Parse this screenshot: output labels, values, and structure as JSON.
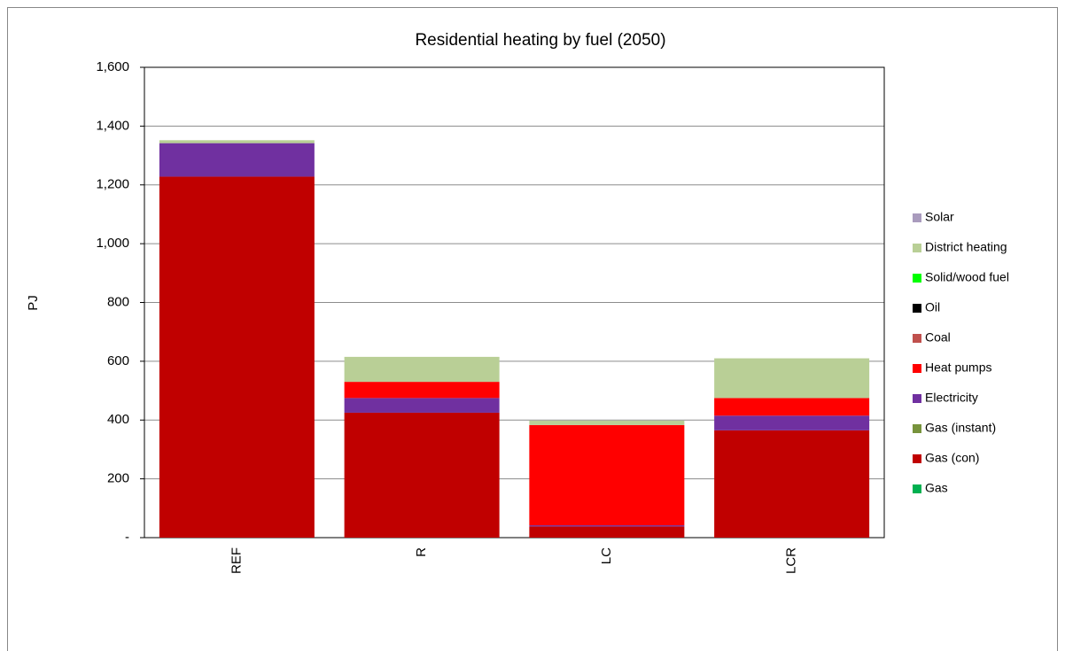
{
  "chart_data": {
    "type": "stacked_bar",
    "title": "Residential heating by fuel (2050)",
    "y_label": "PJ",
    "categories": [
      "REF",
      "R",
      "LC",
      "LCR"
    ],
    "series": [
      {
        "name": "Gas",
        "color": "#00b050",
        "values": [
          0,
          0,
          0,
          0
        ]
      },
      {
        "name": "Gas (con)",
        "color": "#c00000",
        "values": [
          1228,
          425,
          38,
          365
        ]
      },
      {
        "name": "Gas (instant)",
        "color": "#77933c",
        "values": [
          0,
          0,
          0,
          0
        ]
      },
      {
        "name": "Electricity",
        "color": "#7030a0",
        "values": [
          114,
          50,
          4,
          50
        ]
      },
      {
        "name": "Heat pumps",
        "color": "#ff0000",
        "values": [
          0,
          55,
          341,
          60
        ]
      },
      {
        "name": "Coal",
        "color": "#c0504d",
        "values": [
          0,
          0,
          0,
          0
        ]
      },
      {
        "name": "Oil",
        "color": "#000000",
        "values": [
          0,
          0,
          0,
          0
        ]
      },
      {
        "name": "Solid/wood fuel",
        "color": "#00ff00",
        "values": [
          0,
          0,
          0,
          0
        ]
      },
      {
        "name": "District heating",
        "color": "#b9cf96",
        "values": [
          10,
          85,
          15,
          135
        ]
      },
      {
        "name": "Solar",
        "color": "#a99bbd",
        "values": [
          0,
          0,
          0,
          0
        ]
      }
    ],
    "ylim": [
      0,
      1600
    ],
    "yticks": [
      {
        "value": 0,
        "label": "-"
      },
      200,
      400,
      600,
      800,
      1000,
      1200,
      1400,
      {
        "value": 1600,
        "label": "1,600"
      }
    ],
    "grid": true,
    "legend": "right"
  }
}
